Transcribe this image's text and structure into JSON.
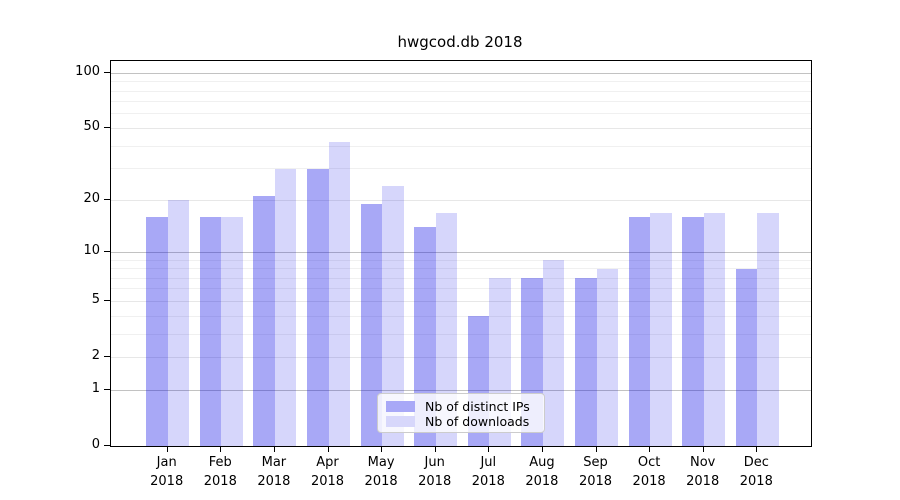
{
  "chart_data": {
    "type": "bar",
    "title": "hwgcod.db 2018",
    "x_axis": {
      "months": [
        "Jan",
        "Feb",
        "Mar",
        "Apr",
        "May",
        "Jun",
        "Jul",
        "Aug",
        "Sep",
        "Oct",
        "Nov",
        "Dec"
      ],
      "year": "2018",
      "categories": [
        "Jan 2018",
        "Feb 2018",
        "Mar 2018",
        "Apr 2018",
        "May 2018",
        "Jun 2018",
        "Jul 2018",
        "Aug 2018",
        "Sep 2018",
        "Oct 2018",
        "Nov 2018",
        "Dec 2018"
      ]
    },
    "y_axis": {
      "scale": "log10(1+y)",
      "tick_values": [
        0,
        1,
        2,
        5,
        10,
        20,
        50,
        100
      ],
      "tick_labels": [
        "0",
        "1",
        "2",
        "5",
        "10",
        "20",
        "50",
        "100"
      ],
      "range_top": 116.5,
      "major_gridlines": [
        1,
        10,
        100
      ],
      "mid_gridlines": [
        2,
        5,
        20,
        50
      ],
      "minor_gridlines": [
        3,
        4,
        6,
        7,
        8,
        9,
        30,
        40,
        60,
        70,
        80,
        90
      ],
      "grid": "on"
    },
    "series": [
      {
        "name": "Nb of distinct IPs",
        "color": "#a8a8f7",
        "fill": "rgba(0,0,230,0.34)",
        "values": [
          16,
          16,
          21,
          30,
          19,
          14,
          4,
          7,
          7,
          16,
          16,
          8
        ]
      },
      {
        "name": "Nb of downloads",
        "color": "#d7d7fb",
        "fill": "rgba(0,0,230,0.16)",
        "values": [
          20,
          16,
          30,
          42,
          24,
          17,
          7,
          9,
          8,
          17,
          17,
          17
        ]
      }
    ],
    "legend": {
      "position": "lower center",
      "entries": [
        "Nb of distinct IPs",
        "Nb of downloads"
      ]
    },
    "colors": {
      "major_grid": "#c2c2c2",
      "mid_grid": "#e7e7e7",
      "minor_grid": "#f0f0f0",
      "frame": "#000000",
      "background": "#ffffff"
    }
  }
}
